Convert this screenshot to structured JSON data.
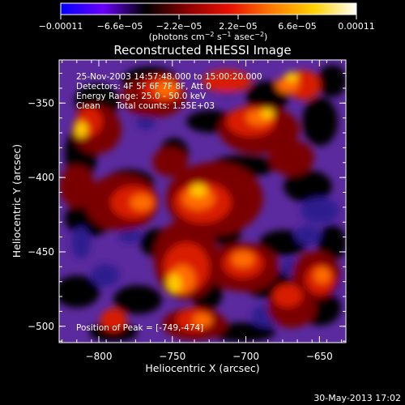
{
  "chart_data": {
    "type": "heatmap",
    "title": "Reconstructed RHESSI Image",
    "xlabel": "Heliocentric X (arcsec)",
    "ylabel": "Heliocentric Y (arcsec)",
    "xlim": [
      -827,
      -632
    ],
    "ylim": [
      -511,
      -321
    ],
    "x_ticks": [
      -800,
      -750,
      -700,
      -650
    ],
    "x_tick_labels": [
      "−800",
      "−750",
      "−700",
      "−650"
    ],
    "y_ticks": [
      -350,
      -400,
      -450,
      -500
    ],
    "y_tick_labels": [
      "−350",
      "−400",
      "−450",
      "−500"
    ],
    "colorbar": {
      "range": [
        -0.00011,
        0.00011
      ],
      "tick_labels": [
        "−0.00011",
        "−6.6e−05",
        "−2.2e−05",
        "2.2e−05",
        "6.6e−05",
        "0.00011"
      ],
      "units": {
        "pre": "(photons cm",
        "e1": "−2",
        "mid1": " s",
        "e2": "−1",
        "mid2": " asec",
        "e3": "−2",
        "post": ")"
      },
      "colors": [
        "#0000ff",
        "#6a00ff",
        "#000000",
        "#8b0000",
        "#e81000",
        "#ff7a00",
        "#ffd200",
        "#ffffff"
      ]
    },
    "annotations": {
      "time": "25-Nov-2003 14:57:48.000 to 15:00:20.000",
      "detectors": "Detectors: 4F 5F 6F 7F 8F, Att 0",
      "energy": "Energy Range: 25.0 - 50.0 keV",
      "clean_method": "Clean",
      "counts": "Total counts: 1.55E+03",
      "peak": "Position of Peak = [-749,-474]"
    },
    "peak_position": [
      -749,
      -474
    ],
    "image_palette": {
      "background": "#5b2a9e",
      "negative": "#2f1f8f",
      "zero": "#000000",
      "positive": [
        "#7a0000",
        "#d81c00",
        "#ff6a00",
        "#ffc800"
      ]
    }
  },
  "footer_date": "30-May-2013 17:02"
}
